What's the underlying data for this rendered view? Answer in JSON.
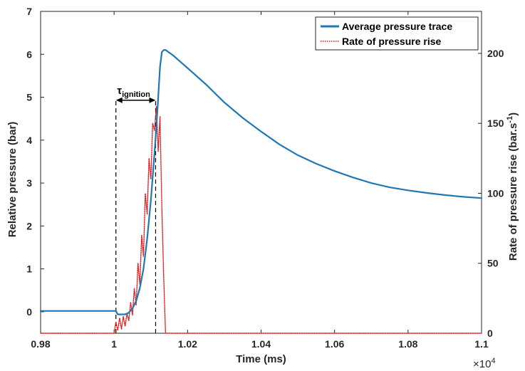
{
  "chart_data": {
    "type": "line",
    "title": "",
    "xlabel": "Time (ms)",
    "x_exponent_label": "×10",
    "x_exponent_power": "4",
    "ylabel_left": "Relative pressure (bar)",
    "ylabel_right_main": "Rate of pressure rise (bar.s",
    "ylabel_right_sup": "-1",
    "ylabel_right_close": ")",
    "xlim": [
      9800,
      11000
    ],
    "ylim_left": [
      -0.5,
      7
    ],
    "ylim_right": [
      0,
      230
    ],
    "x_ticks": [
      9800,
      10000,
      10200,
      10400,
      10600,
      10800,
      11000
    ],
    "x_tick_labels": [
      "0.98",
      "1",
      "1.02",
      "1.04",
      "1.06",
      "1.08",
      "1.1"
    ],
    "y_left_ticks": [
      0,
      1,
      2,
      3,
      4,
      5,
      6,
      7
    ],
    "y_left_tick_labels": [
      "0",
      "1",
      "2",
      "3",
      "4",
      "5",
      "6",
      "7"
    ],
    "y_right_ticks": [
      0,
      50,
      100,
      150,
      200
    ],
    "y_right_tick_labels": [
      "0",
      "50",
      "100",
      "150",
      "200"
    ],
    "grid": false,
    "legend_position": "top-right",
    "annotation": {
      "label_main": "τ",
      "label_sub": "ignition",
      "x_start": 10005,
      "x_end": 10113,
      "y_level": 4.93,
      "dashed_lines": [
        {
          "x": 10005,
          "y_top": 4.93
        },
        {
          "x": 10113,
          "y_top": 4.93
        }
      ]
    },
    "series": [
      {
        "name": "Average pressure trace",
        "axis": "left",
        "color": "#1f77b4",
        "style": "solid",
        "x": [
          9800,
          9850,
          9900,
          9950,
          9990,
          10005,
          10010,
          10030,
          10040,
          10050,
          10060,
          10070,
          10080,
          10090,
          10100,
          10110,
          10115,
          10120,
          10125,
          10130,
          10135,
          10140,
          10160,
          10200,
          10250,
          10300,
          10350,
          10400,
          10450,
          10500,
          10550,
          10600,
          10650,
          10700,
          10750,
          10800,
          10850,
          10900,
          10950,
          11000
        ],
        "y": [
          0.02,
          0.02,
          0.02,
          0.02,
          0.02,
          0.02,
          -0.06,
          -0.06,
          -0.02,
          0.08,
          0.25,
          0.55,
          1.0,
          1.7,
          2.6,
          3.7,
          4.3,
          5.0,
          5.7,
          6.05,
          6.1,
          6.1,
          5.98,
          5.68,
          5.3,
          4.88,
          4.52,
          4.2,
          3.9,
          3.65,
          3.45,
          3.28,
          3.13,
          3.0,
          2.9,
          2.83,
          2.77,
          2.72,
          2.68,
          2.65
        ]
      },
      {
        "name": "Rate of pressure rise",
        "axis": "right",
        "color": "#e41a1c",
        "style": "dotted",
        "x": [
          9800,
          9900,
          10000,
          10005,
          10010,
          10015,
          10020,
          10025,
          10030,
          10035,
          10040,
          10045,
          10050,
          10055,
          10060,
          10065,
          10070,
          10075,
          10080,
          10085,
          10090,
          10095,
          10100,
          10105,
          10110,
          10115,
          10120,
          10125,
          10130,
          10135,
          10140,
          10200,
          10500,
          11000
        ],
        "y": [
          0,
          0,
          0,
          8,
          2,
          11,
          3,
          12,
          5,
          14,
          9,
          22,
          13,
          32,
          20,
          50,
          35,
          70,
          55,
          100,
          85,
          125,
          110,
          150,
          145,
          162,
          130,
          155,
          90,
          40,
          0,
          0,
          0,
          0
        ]
      }
    ]
  }
}
